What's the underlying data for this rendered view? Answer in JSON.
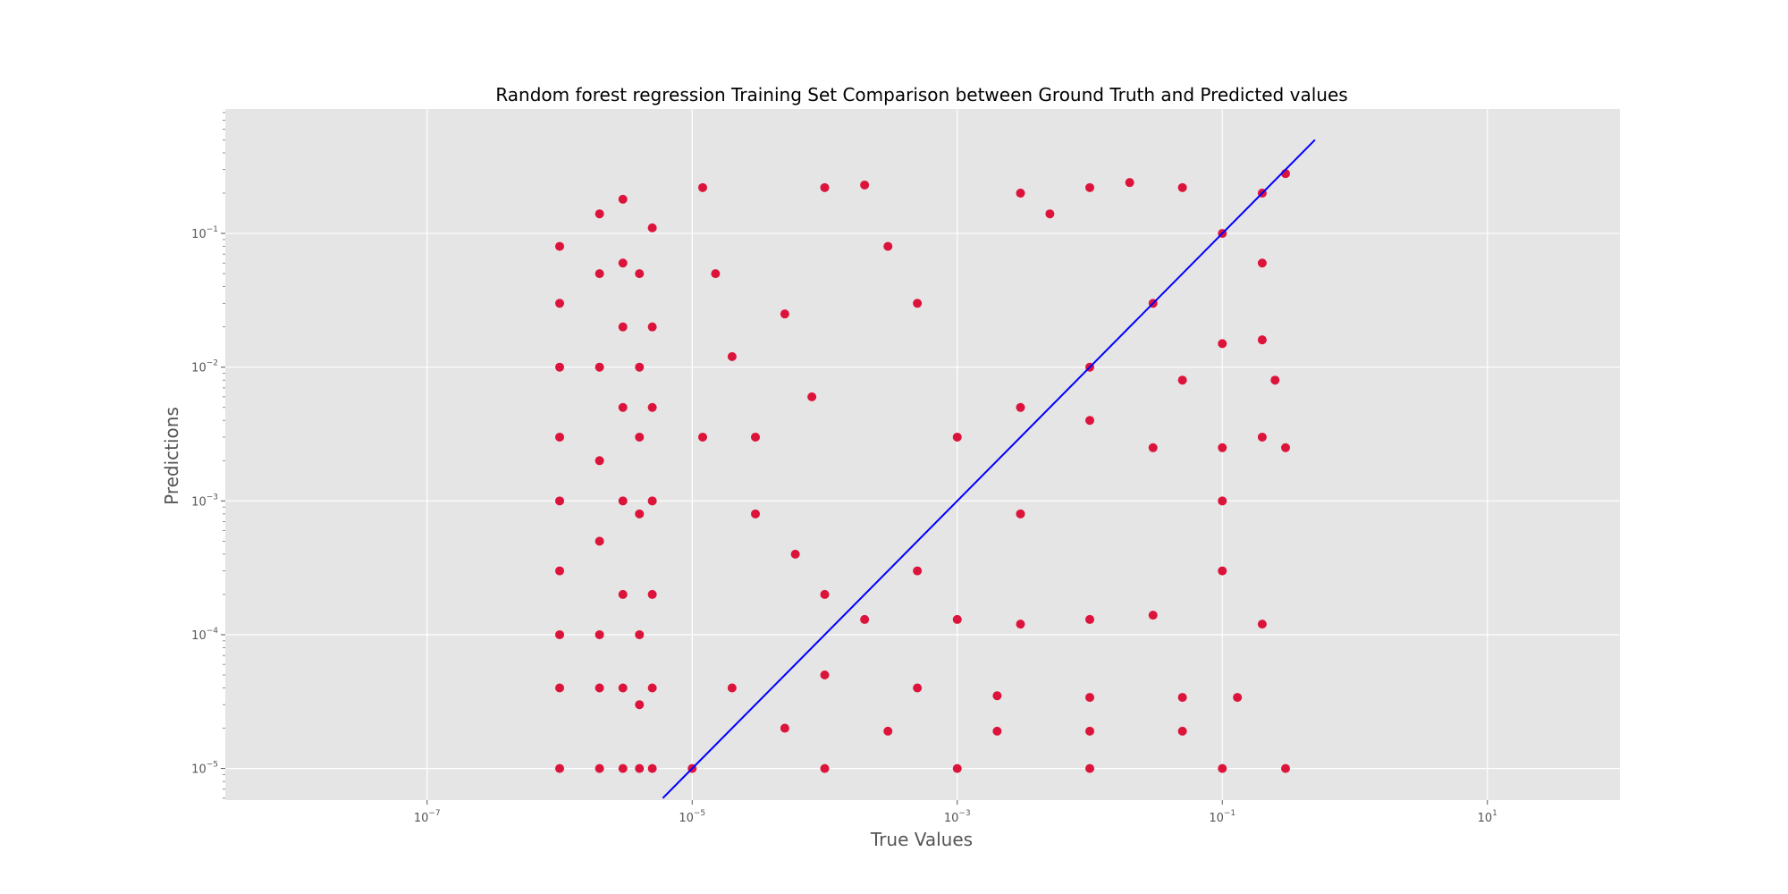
{
  "chart_data": {
    "type": "scatter",
    "title": "Random forest regression Training Set Comparison between Ground Truth and Predicted values",
    "xlabel": "True Values",
    "ylabel": "Predictions",
    "xscale": "log",
    "yscale": "log",
    "xlim": [
      3e-09,
      100
    ],
    "ylim": [
      5.8e-06,
      0.85
    ],
    "x_ticks": [
      {
        "value": 1e-07,
        "base": "10",
        "exp": "−7"
      },
      {
        "value": 1e-05,
        "base": "10",
        "exp": "−5"
      },
      {
        "value": 0.001,
        "base": "10",
        "exp": "−3"
      },
      {
        "value": 0.1,
        "base": "10",
        "exp": "−1"
      },
      {
        "value": 10,
        "base": "10",
        "exp": "1"
      }
    ],
    "y_ticks": [
      {
        "value": 1e-05,
        "base": "10",
        "exp": "−5"
      },
      {
        "value": 0.0001,
        "base": "10",
        "exp": "−4"
      },
      {
        "value": 0.001,
        "base": "10",
        "exp": "−3"
      },
      {
        "value": 0.01,
        "base": "10",
        "exp": "−2"
      },
      {
        "value": 0.1,
        "base": "10",
        "exp": "−1"
      }
    ],
    "grid": true,
    "legend": "none",
    "colors": {
      "points": "#dc143c",
      "reference_line": "#0000ff",
      "plot_background": "#e5e5e5",
      "grid": "#ffffff"
    },
    "reference_line": {
      "name": "y = x",
      "x": [
        6e-06,
        0.5
      ],
      "y": [
        6e-06,
        0.5
      ]
    },
    "series": [
      {
        "points": [
          [
            1e-06,
            0.08
          ],
          [
            1e-06,
            0.03
          ],
          [
            1e-06,
            0.01
          ],
          [
            1e-06,
            0.003
          ],
          [
            1e-06,
            0.001
          ],
          [
            1e-06,
            0.0003
          ],
          [
            1e-06,
            0.0001
          ],
          [
            1e-06,
            4e-05
          ],
          [
            1e-06,
            1e-05
          ],
          [
            2e-06,
            0.14
          ],
          [
            2e-06,
            0.05
          ],
          [
            2e-06,
            0.01
          ],
          [
            2e-06,
            0.002
          ],
          [
            2e-06,
            0.0005
          ],
          [
            2e-06,
            0.0001
          ],
          [
            2e-06,
            4e-05
          ],
          [
            2e-06,
            1e-05
          ],
          [
            3e-06,
            0.18
          ],
          [
            3e-06,
            0.06
          ],
          [
            3e-06,
            0.02
          ],
          [
            3e-06,
            0.005
          ],
          [
            3e-06,
            0.001
          ],
          [
            3e-06,
            0.0002
          ],
          [
            3e-06,
            4e-05
          ],
          [
            3e-06,
            1e-05
          ],
          [
            4e-06,
            0.05
          ],
          [
            4e-06,
            0.01
          ],
          [
            4e-06,
            0.003
          ],
          [
            4e-06,
            0.0008
          ],
          [
            4e-06,
            0.0001
          ],
          [
            4e-06,
            3e-05
          ],
          [
            4e-06,
            1e-05
          ],
          [
            5e-06,
            0.11
          ],
          [
            5e-06,
            0.02
          ],
          [
            5e-06,
            0.005
          ],
          [
            5e-06,
            0.001
          ],
          [
            5e-06,
            0.0002
          ],
          [
            5e-06,
            4e-05
          ],
          [
            5e-06,
            1e-05
          ],
          [
            1.2e-05,
            0.22
          ],
          [
            1.5e-05,
            0.05
          ],
          [
            2e-05,
            0.012
          ],
          [
            3e-05,
            0.003
          ],
          [
            5e-05,
            0.025
          ],
          [
            8e-05,
            0.006
          ],
          [
            0.0001,
            0.22
          ],
          [
            0.0002,
            0.23
          ],
          [
            0.0003,
            0.08
          ],
          [
            0.0005,
            0.03
          ],
          [
            1.2e-05,
            0.003
          ],
          [
            3e-05,
            0.0008
          ],
          [
            6e-05,
            0.0004
          ],
          [
            0.0001,
            0.0002
          ],
          [
            0.0002,
            0.00013
          ],
          [
            0.0005,
            0.0003
          ],
          [
            0.001,
            0.00013
          ],
          [
            0.003,
            0.00012
          ],
          [
            0.01,
            0.00013
          ],
          [
            0.03,
            0.00014
          ],
          [
            2e-05,
            4e-05
          ],
          [
            0.0001,
            5e-05
          ],
          [
            0.0005,
            4e-05
          ],
          [
            0.002,
            3.5e-05
          ],
          [
            0.01,
            3.4e-05
          ],
          [
            0.05,
            3.4e-05
          ],
          [
            0.13,
            3.4e-05
          ],
          [
            1e-05,
            1e-05
          ],
          [
            0.0001,
            1e-05
          ],
          [
            0.001,
            1e-05
          ],
          [
            0.01,
            1e-05
          ],
          [
            0.1,
            1e-05
          ],
          [
            0.3,
            1e-05
          ],
          [
            5e-05,
            2e-05
          ],
          [
            0.0003,
            1.9e-05
          ],
          [
            0.002,
            1.9e-05
          ],
          [
            0.01,
            1.9e-05
          ],
          [
            0.05,
            1.9e-05
          ],
          [
            0.001,
            0.003
          ],
          [
            0.003,
            0.005
          ],
          [
            0.01,
            0.01
          ],
          [
            0.03,
            0.03
          ],
          [
            0.1,
            0.1
          ],
          [
            0.2,
            0.2
          ],
          [
            0.3,
            0.28
          ],
          [
            0.003,
            0.0008
          ],
          [
            0.01,
            0.004
          ],
          [
            0.03,
            0.0025
          ],
          [
            0.1,
            0.0025
          ],
          [
            0.2,
            0.003
          ],
          [
            0.3,
            0.0025
          ],
          [
            0.05,
            0.008
          ],
          [
            0.1,
            0.015
          ],
          [
            0.2,
            0.016
          ],
          [
            0.2,
            0.06
          ],
          [
            0.25,
            0.008
          ],
          [
            0.1,
            0.001
          ],
          [
            0.1,
            0.0003
          ],
          [
            0.2,
            0.00012
          ],
          [
            0.05,
            0.22
          ],
          [
            0.02,
            0.24
          ],
          [
            0.01,
            0.22
          ],
          [
            0.003,
            0.2
          ],
          [
            0.005,
            0.14
          ]
        ]
      }
    ]
  }
}
